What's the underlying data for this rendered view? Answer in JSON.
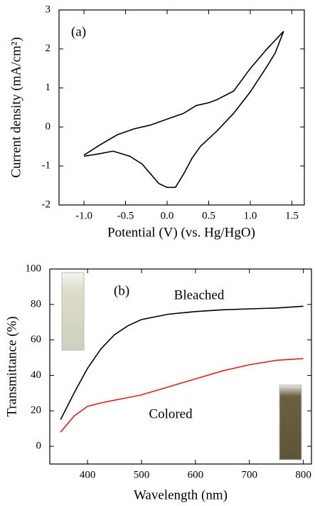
{
  "chart_data": [
    {
      "type": "line",
      "panel_label": "(a)",
      "x_label": "Potential (V) (vs. Hg/HgO)",
      "y_label": "Current density (mA/cm²)",
      "x": [
        -1.0,
        -0.8,
        -0.6,
        -0.4,
        -0.2,
        0.0,
        0.2,
        0.35,
        0.5,
        0.6,
        0.8,
        1.0,
        1.2,
        1.4,
        1.3,
        1.2,
        1.0,
        0.8,
        0.6,
        0.4,
        0.3,
        0.2,
        0.1,
        0.0,
        -0.1,
        -0.2,
        -0.3,
        -0.45,
        -0.65,
        -0.85,
        -1.0
      ],
      "values": [
        -0.72,
        -0.45,
        -0.2,
        -0.05,
        0.05,
        0.2,
        0.35,
        0.55,
        0.62,
        0.7,
        0.92,
        1.5,
        2.0,
        2.45,
        1.9,
        1.55,
        0.9,
        0.35,
        -0.1,
        -0.5,
        -0.8,
        -1.2,
        -1.55,
        -1.55,
        -1.45,
        -1.2,
        -0.95,
        -0.75,
        -0.62,
        -0.7,
        -0.75
      ],
      "color": "#000000",
      "xlim": [
        -1.3,
        1.65
      ],
      "xticks": [
        {
          "value": -1.0,
          "label": "-1.0"
        },
        -0.5,
        {
          "value": 0.0,
          "label": "0.0"
        },
        0.5,
        {
          "value": 1.0,
          "label": "1.0"
        },
        1.5
      ],
      "ylim": [
        -2,
        3
      ],
      "yticks": [
        -2,
        -1,
        0,
        1,
        2,
        3
      ]
    },
    {
      "type": "line",
      "panel_label": "(b)",
      "x_label": "Wavelength (nm)",
      "y_label": "Transmittance (%)",
      "x": [
        350,
        375,
        400,
        425,
        450,
        475,
        500,
        550,
        600,
        650,
        700,
        750,
        800
      ],
      "series": [
        {
          "name": "Bleached",
          "color": "#000000",
          "values": [
            15,
            30,
            44,
            55,
            63,
            68,
            71.5,
            74.5,
            76,
            77,
            77.5,
            78,
            79
          ]
        },
        {
          "name": "Colored",
          "color": "#e02020",
          "values": [
            8,
            17,
            22.5,
            24.5,
            26,
            27.5,
            29,
            33.5,
            38,
            42.5,
            46,
            48.5,
            49.5
          ]
        }
      ],
      "xlim": [
        330,
        815
      ],
      "xticks": [
        400,
        500,
        600,
        700,
        800
      ],
      "ylim": [
        -10,
        100
      ],
      "yticks": [
        0,
        20,
        40,
        60,
        80,
        100
      ]
    }
  ]
}
